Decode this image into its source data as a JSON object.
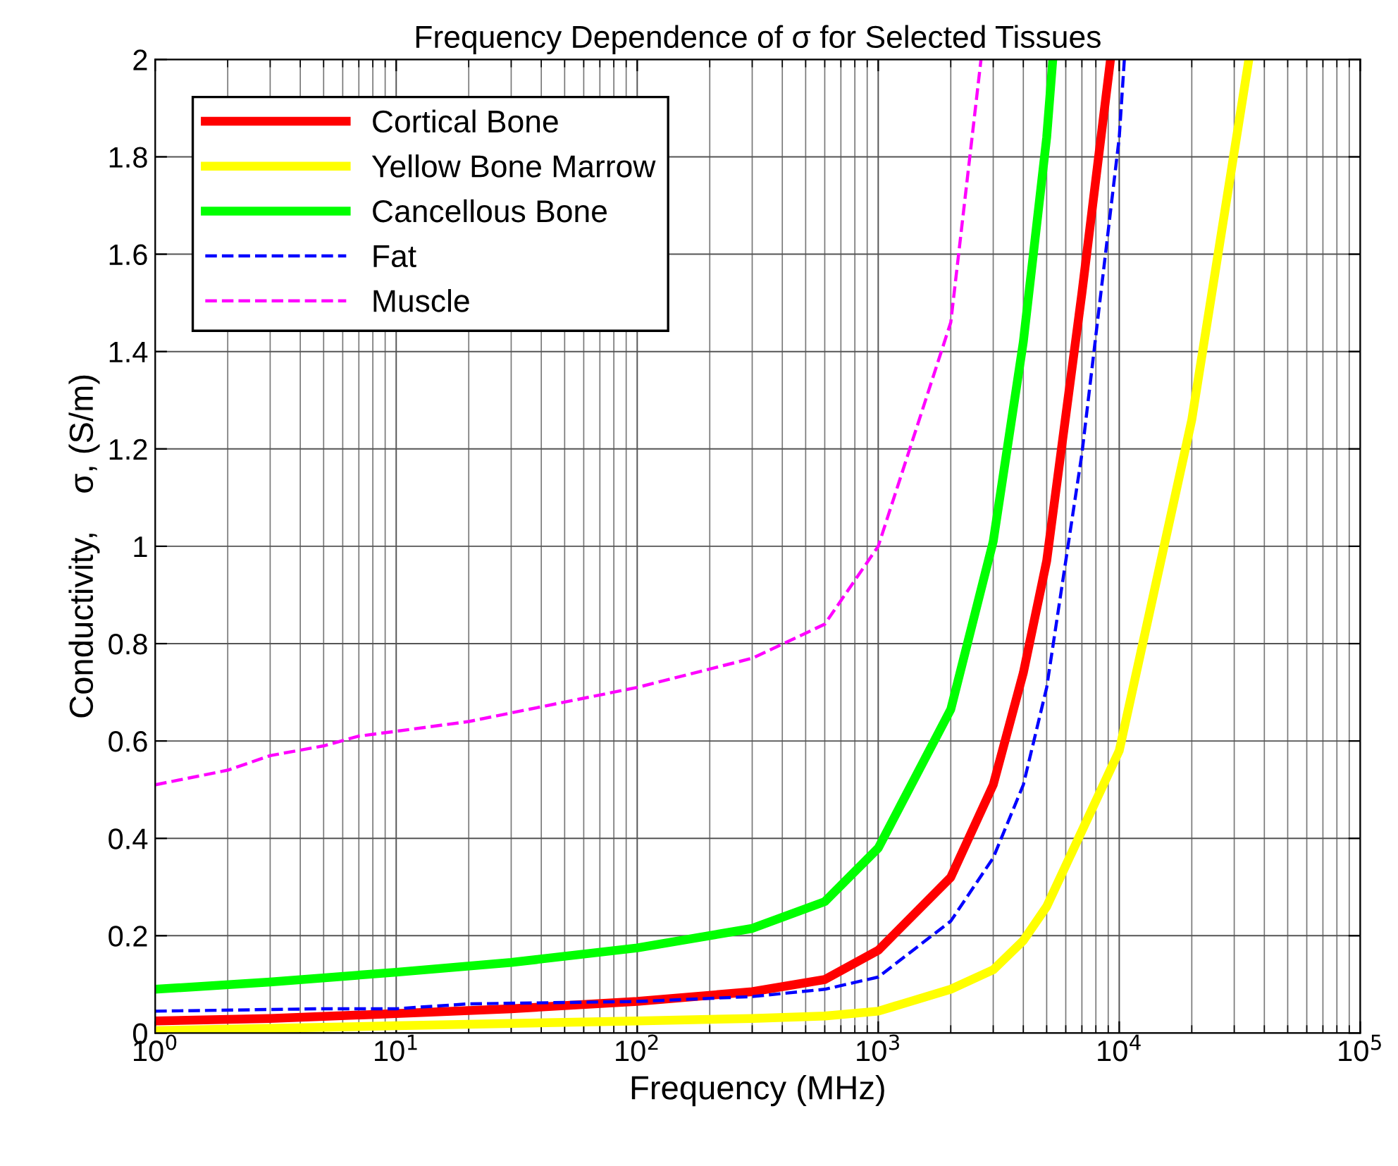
{
  "chart_data": {
    "type": "line",
    "title": "Frequency Dependence of σ for Selected Tissues",
    "xlabel": "Frequency (MHz)",
    "ylabel": "Conductivity,    σ, (S/m)",
    "log": "x",
    "grid": true,
    "legend": "top left",
    "xlim": [
      1,
      100000
    ],
    "ylim": [
      0,
      2
    ],
    "xticks": [
      {
        "value": 1,
        "label": "10$^{0}$"
      },
      {
        "value": 10,
        "label": "10$^{1}$"
      },
      {
        "value": 100,
        "label": "10$^{2}$"
      },
      {
        "value": 1000,
        "label": "10$^{3}$"
      },
      {
        "value": 10000,
        "label": "10$^{4}$"
      },
      {
        "value": 100000,
        "label": "10$^{5}$"
      }
    ],
    "yticks": [
      0,
      0.2,
      0.4,
      0.6,
      0.8,
      1,
      1.2,
      1.4,
      1.6,
      1.8,
      2
    ],
    "series": [
      {
        "name": "Cortical Bone",
        "color": "#ff0000",
        "line_style": "solid",
        "x": [
          1,
          3,
          10,
          30,
          100,
          300,
          600,
          1000,
          2000,
          3000,
          4000,
          5000,
          7000,
          9200
        ],
        "values": [
          0.025,
          0.03,
          0.04,
          0.05,
          0.065,
          0.085,
          0.11,
          0.17,
          0.32,
          0.51,
          0.74,
          0.97,
          1.52,
          2
        ]
      },
      {
        "name": "Yellow Bone Marrow",
        "color": "#ffff00",
        "line_style": "solid",
        "x": [
          1,
          10,
          100,
          300,
          600,
          1000,
          2000,
          3000,
          4000,
          5000,
          10000,
          20000,
          34500
        ],
        "values": [
          0.005,
          0.015,
          0.025,
          0.03,
          0.035,
          0.045,
          0.09,
          0.13,
          0.19,
          0.26,
          0.58,
          1.26,
          2
        ]
      },
      {
        "name": "Cancellous Bone",
        "color": "#00ff00",
        "line_style": "solid",
        "x": [
          1,
          3,
          10,
          30,
          100,
          300,
          600,
          1000,
          2000,
          3000,
          4000,
          5000,
          5300
        ],
        "values": [
          0.09,
          0.105,
          0.125,
          0.145,
          0.175,
          0.215,
          0.27,
          0.38,
          0.665,
          1.01,
          1.42,
          1.84,
          2
        ]
      },
      {
        "name": "Fat",
        "color": "#0000ff",
        "line_style": "dashed",
        "x": [
          1,
          5,
          10,
          20,
          100,
          300,
          600,
          1000,
          2000,
          3000,
          4000,
          5000,
          7000,
          10000,
          10500
        ],
        "values": [
          0.045,
          0.05,
          0.05,
          0.06,
          0.065,
          0.075,
          0.09,
          0.115,
          0.23,
          0.36,
          0.51,
          0.71,
          1.19,
          1.84,
          2
        ]
      },
      {
        "name": "Muscle",
        "color": "#ff00ff",
        "line_style": "dashed",
        "x": [
          1,
          2,
          3,
          5,
          7,
          10,
          20,
          50,
          100,
          300,
          600,
          1000,
          2000,
          2670
        ],
        "values": [
          0.51,
          0.54,
          0.57,
          0.59,
          0.61,
          0.62,
          0.64,
          0.68,
          0.71,
          0.77,
          0.84,
          1.0,
          1.46,
          2
        ]
      }
    ]
  }
}
